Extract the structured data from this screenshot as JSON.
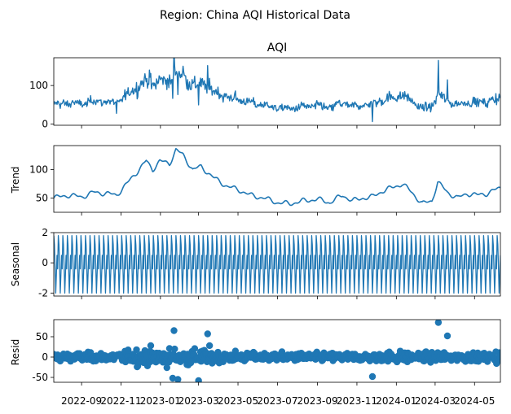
{
  "figure": {
    "suptitle": "Region: China AQI Historical Data"
  },
  "colors": {
    "series": "#1f77b4",
    "axis": "#000000",
    "background": "#ffffff"
  },
  "chart_data": [
    {
      "type": "line",
      "title": "AQI",
      "ylabel": "",
      "ylim": [
        -3,
        172
      ],
      "yticks": [
        0,
        100
      ],
      "xlim": [
        "2022-07-20",
        "2024-06-10"
      ],
      "x_date_range": [
        "2022-07-20",
        "2024-06-10"
      ],
      "trend_anchors": [
        [
          "2022-07-20",
          50
        ],
        [
          "2022-08-10",
          55
        ],
        [
          "2022-09-01",
          52
        ],
        [
          "2022-09-20",
          60
        ],
        [
          "2022-10-10",
          58
        ],
        [
          "2022-10-25",
          55
        ],
        [
          "2022-11-10",
          75
        ],
        [
          "2022-11-25",
          95
        ],
        [
          "2022-12-10",
          115
        ],
        [
          "2022-12-20",
          100
        ],
        [
          "2022-12-31",
          115
        ],
        [
          "2023-01-15",
          110
        ],
        [
          "2023-01-25",
          135
        ],
        [
          "2023-02-05",
          125
        ],
        [
          "2023-02-20",
          100
        ],
        [
          "2023-03-05",
          105
        ],
        [
          "2023-03-25",
          85
        ],
        [
          "2023-04-15",
          70
        ],
        [
          "2023-05-01",
          65
        ],
        [
          "2023-05-20",
          55
        ],
        [
          "2023-06-10",
          50
        ],
        [
          "2023-07-01",
          42
        ],
        [
          "2023-07-20",
          40
        ],
        [
          "2023-08-10",
          45
        ],
        [
          "2023-09-01",
          48
        ],
        [
          "2023-09-20",
          42
        ],
        [
          "2023-10-10",
          55
        ],
        [
          "2023-10-25",
          45
        ],
        [
          "2023-11-10",
          50
        ],
        [
          "2023-11-25",
          52
        ],
        [
          "2023-12-10",
          62
        ],
        [
          "2023-12-25",
          68
        ],
        [
          "2024-01-10",
          75
        ],
        [
          "2024-01-25",
          60
        ],
        [
          "2024-02-10",
          40
        ],
        [
          "2024-02-25",
          45
        ],
        [
          "2024-03-05",
          78
        ],
        [
          "2024-03-20",
          60
        ],
        [
          "2024-04-05",
          50
        ],
        [
          "2024-04-20",
          58
        ],
        [
          "2024-05-05",
          55
        ],
        [
          "2024-05-20",
          58
        ],
        [
          "2024-06-10",
          68
        ]
      ],
      "highlights": [
        [
          "2024-03-06",
          165
        ],
        [
          "2023-02-05",
          150
        ],
        [
          "2022-12-15",
          140
        ],
        [
          "2022-10-25",
          28
        ]
      ]
    },
    {
      "type": "line",
      "title": "",
      "ylabel": "Trend",
      "ylim": [
        25,
        142
      ],
      "yticks": [
        50,
        100
      ],
      "note": "smoothed trend component"
    },
    {
      "type": "line",
      "title": "",
      "ylabel": "Seasonal",
      "ylim": [
        -2.2,
        2
      ],
      "yticks": [
        -2,
        0,
        2
      ],
      "period_days": 7,
      "weekly_pattern": [
        1.8,
        1.2,
        -0.3,
        -2.0,
        -0.8,
        0.5,
        -0.4
      ]
    },
    {
      "type": "scatter",
      "title": "",
      "ylabel": "Resid",
      "ylim": [
        -62,
        92
      ],
      "yticks": [
        -50,
        0,
        50
      ],
      "outliers": [
        [
          "2024-03-06",
          85
        ],
        [
          "2023-01-22",
          65
        ],
        [
          "2023-03-15",
          57
        ],
        [
          "2024-03-20",
          52
        ],
        [
          "2023-01-28",
          -55
        ],
        [
          "2023-01-20",
          -52
        ],
        [
          "2023-03-01",
          -58
        ],
        [
          "2023-11-25",
          -48
        ]
      ]
    }
  ],
  "x_axis": {
    "tick_labels": [
      "2022-09",
      "2022-11",
      "2023-01",
      "2023-03",
      "2023-05",
      "2023-07",
      "2023-09",
      "2023-11",
      "2024-01",
      "2024-03",
      "2024-05"
    ],
    "tick_dates": [
      "2022-09-01",
      "2022-11-01",
      "2023-01-01",
      "2023-03-01",
      "2023-05-01",
      "2023-07-01",
      "2023-09-01",
      "2023-11-01",
      "2024-01-01",
      "2024-03-01",
      "2024-05-01"
    ]
  }
}
